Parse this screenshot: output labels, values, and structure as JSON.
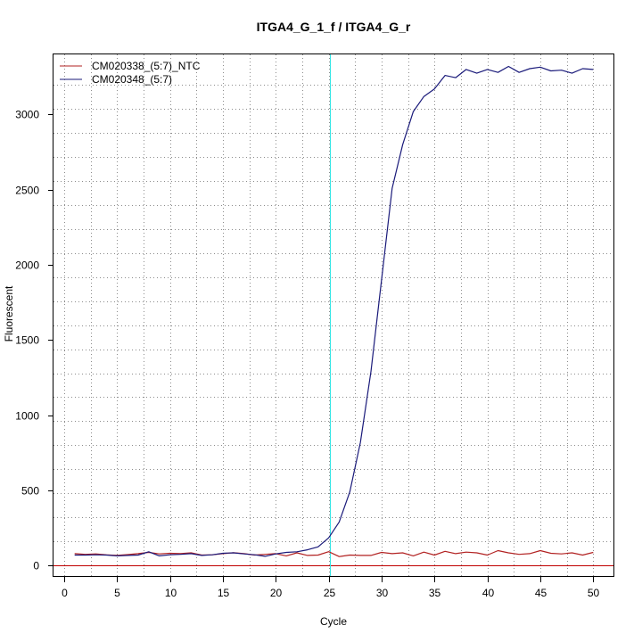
{
  "chart_data": {
    "type": "line",
    "title": "ITGA4_G_1_f / ITGA4_G_r",
    "xlabel": "Cycle",
    "ylabel": "Fluorescent",
    "xlim": [
      -1,
      52
    ],
    "ylim": [
      -75,
      3400
    ],
    "xticks": [
      0,
      5,
      10,
      15,
      20,
      25,
      30,
      35,
      40,
      45,
      50
    ],
    "yticks": [
      0,
      500,
      1000,
      1500,
      2000,
      2500,
      3000
    ],
    "x_grid": [
      0,
      2.5,
      5,
      7.5,
      10,
      12.5,
      15,
      17.5,
      20,
      22.5,
      25,
      27.5,
      30,
      32.5,
      35,
      37.5,
      40,
      42.5,
      45,
      47.5,
      50
    ],
    "y_grid": [
      0,
      160,
      320,
      480,
      640,
      800,
      960,
      1120,
      1280,
      1440,
      1600,
      1760,
      1920,
      2080,
      2240,
      2400,
      2560,
      2720,
      2880,
      3040,
      3200
    ],
    "grid": true,
    "legend_position": "top-left",
    "threshold": {
      "value": 0,
      "color": "#c00000"
    },
    "ct_line": {
      "value": 25.1,
      "color": "#33e5e5"
    },
    "x": [
      1,
      2,
      3,
      4,
      5,
      6,
      7,
      8,
      9,
      10,
      11,
      12,
      13,
      14,
      15,
      16,
      17,
      18,
      19,
      20,
      21,
      22,
      23,
      24,
      25,
      26,
      27,
      28,
      29,
      30,
      31,
      32,
      33,
      34,
      35,
      36,
      37,
      38,
      39,
      40,
      41,
      42,
      43,
      44,
      45,
      46,
      47,
      48,
      49,
      50
    ],
    "series": [
      {
        "name": "CM020338_(5:7)_NTC",
        "color": "#b22222",
        "values": [
          80,
          75,
          78,
          72,
          68,
          73,
          80,
          88,
          78,
          82,
          80,
          85,
          70,
          72,
          80,
          86,
          80,
          70,
          75,
          80,
          65,
          85,
          68,
          70,
          93,
          60,
          70,
          68,
          68,
          88,
          80,
          85,
          65,
          90,
          70,
          95,
          80,
          90,
          85,
          70,
          100,
          85,
          75,
          80,
          100,
          82,
          78,
          85,
          70,
          88
        ]
      },
      {
        "name": "CM020348_(5:7)",
        "color": "#1a1a7a",
        "values": [
          70,
          70,
          72,
          70,
          65,
          68,
          70,
          92,
          65,
          72,
          75,
          80,
          68,
          72,
          82,
          85,
          78,
          72,
          62,
          78,
          88,
          92,
          105,
          125,
          185,
          290,
          490,
          820,
          1290,
          1900,
          2510,
          2800,
          3020,
          3120,
          3170,
          3260,
          3245,
          3300,
          3275,
          3300,
          3280,
          3320,
          3280,
          3305,
          3315,
          3290,
          3295,
          3275,
          3305,
          3300
        ]
      }
    ]
  }
}
